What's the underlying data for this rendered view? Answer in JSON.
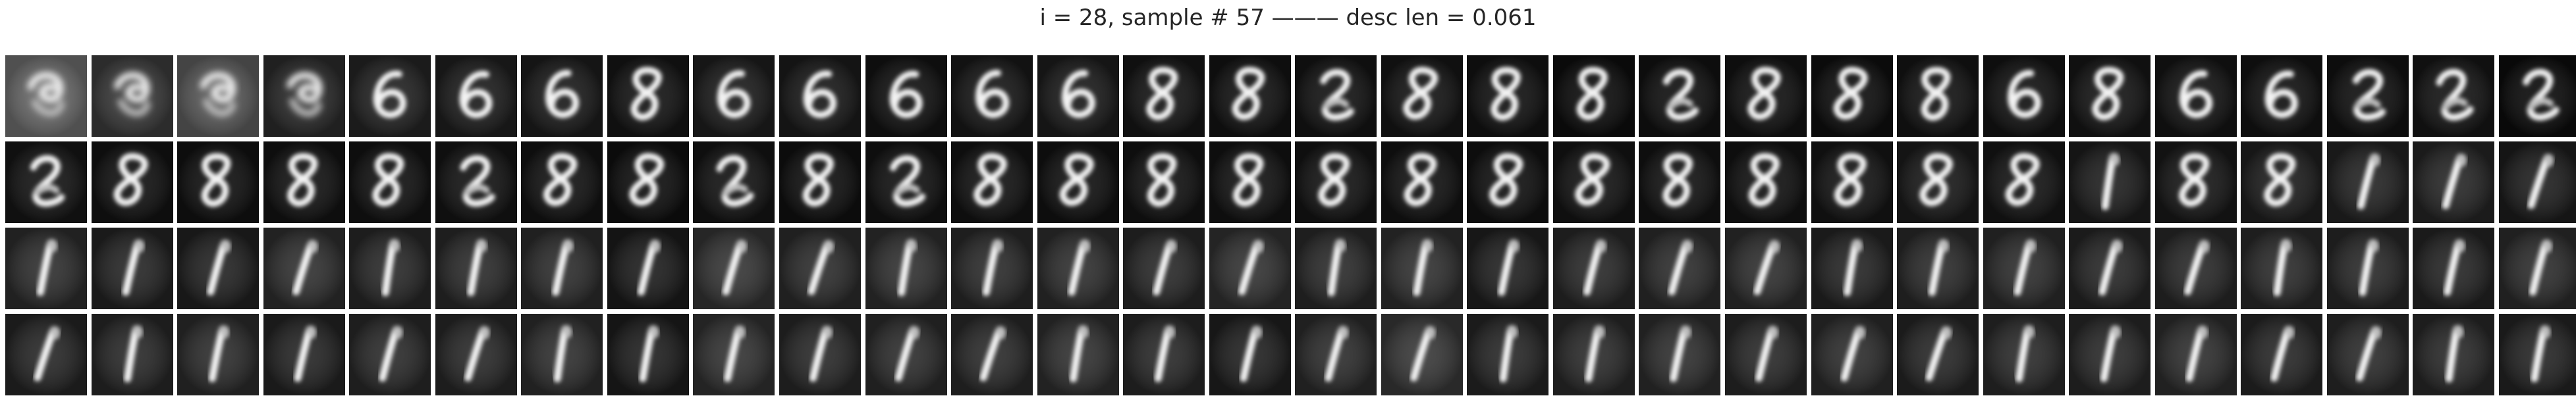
{
  "figure": {
    "title": "i = 28, sample # 57 ——— desc len = 0.061"
  },
  "grid": {
    "rows": 4,
    "cols": 30,
    "row_glyphs": [
      [
        "blob",
        "blob",
        "blob",
        "blob",
        "six",
        "six",
        "six",
        "eight",
        "six",
        "six",
        "six",
        "six",
        "six",
        "eight",
        "eight",
        "two",
        "eight",
        "eight",
        "eight",
        "two",
        "eight",
        "eight",
        "eight",
        "six",
        "eight",
        "six",
        "six",
        "two",
        "two",
        "two"
      ],
      [
        "two",
        "eight",
        "eight",
        "eight",
        "eight",
        "two",
        "eight",
        "eight",
        "two",
        "eight",
        "two",
        "eight",
        "eight",
        "eight",
        "eight",
        "eight",
        "eight",
        "eight",
        "eight",
        "eight",
        "eight",
        "eight",
        "eight",
        "eight",
        "one",
        "eight",
        "eight",
        "one",
        "one",
        "one"
      ],
      [
        "one",
        "one",
        "one",
        "one",
        "one",
        "one",
        "one",
        "one",
        "one",
        "one",
        "one",
        "one",
        "one",
        "one",
        "one",
        "one",
        "one",
        "one",
        "one",
        "one",
        "one",
        "one",
        "one",
        "one",
        "one",
        "one",
        "one",
        "one",
        "one",
        "one"
      ],
      [
        "one",
        "one",
        "one",
        "one",
        "one",
        "one",
        "one",
        "one",
        "one",
        "one",
        "one",
        "one",
        "one",
        "one",
        "one",
        "one",
        "one",
        "one",
        "one",
        "one",
        "one",
        "one",
        "one",
        "one",
        "one",
        "one",
        "one",
        "one",
        "one",
        "one"
      ]
    ],
    "backgrounds": [
      [
        "#6a6a6a",
        "#3a3a3a",
        "#5a5a5a",
        "#2a2a2a",
        "#242424",
        "#1e1e1e",
        "#1c1c1c",
        "#151515",
        "#1d1d1d",
        "#1a1a1a",
        "#121212",
        "#181818",
        "#1c1c1c",
        "#151515",
        "#131313",
        "#141414",
        "#151515",
        "#121212",
        "#0d0d0d",
        "#111111",
        "#121212",
        "#0f0f0f",
        "#141414",
        "#131313",
        "#161616",
        "#141414",
        "#121212",
        "#111111",
        "#151515",
        "#0c0c0c"
      ],
      [
        "#151515",
        "#121212",
        "#111111",
        "#131313",
        "#121212",
        "#141414",
        "#131313",
        "#0f0f0f",
        "#141414",
        "#101010",
        "#121212",
        "#131313",
        "#111111",
        "#121212",
        "#131313",
        "#141414",
        "#121212",
        "#111111",
        "#141414",
        "#131313",
        "#121212",
        "#151515",
        "#1a1a1a",
        "#151515",
        "#1c1c1c",
        "#181818",
        "#1e1e1e",
        "#212121",
        "#242424",
        "#1c1c1c"
      ],
      [
        "#2c2c2c",
        "#232323",
        "#202020",
        "#2e2e2e",
        "#262626",
        "#282828",
        "#2a2a2a",
        "#1a1a1a",
        "#333333",
        "#2a2a2a",
        "#2e2e2e",
        "#282828",
        "#2c2c2c",
        "#262626",
        "#303030",
        "#282828",
        "#2e2e2e",
        "#1e1e1e",
        "#262626",
        "#2a2a2a",
        "#2c2c2c",
        "#222222",
        "#282828",
        "#2a2a2a",
        "#242424",
        "#262626",
        "#282828",
        "#262626",
        "#222222",
        "#2a2a2a"
      ],
      [
        "#242424",
        "#262626",
        "#2a2a2a",
        "#222222",
        "#282828",
        "#262626",
        "#2c2c2c",
        "#1c1c1c",
        "#303030",
        "#262626",
        "#2a2a2a",
        "#282828",
        "#2e2e2e",
        "#262626",
        "#1e1e1e",
        "#2a2a2a",
        "#363636",
        "#242424",
        "#282828",
        "#2c2c2c",
        "#262626",
        "#2a2a2a",
        "#242424",
        "#282828",
        "#262626",
        "#2c2c2c",
        "#242424",
        "#282828",
        "#262626",
        "#222222"
      ]
    ]
  }
}
